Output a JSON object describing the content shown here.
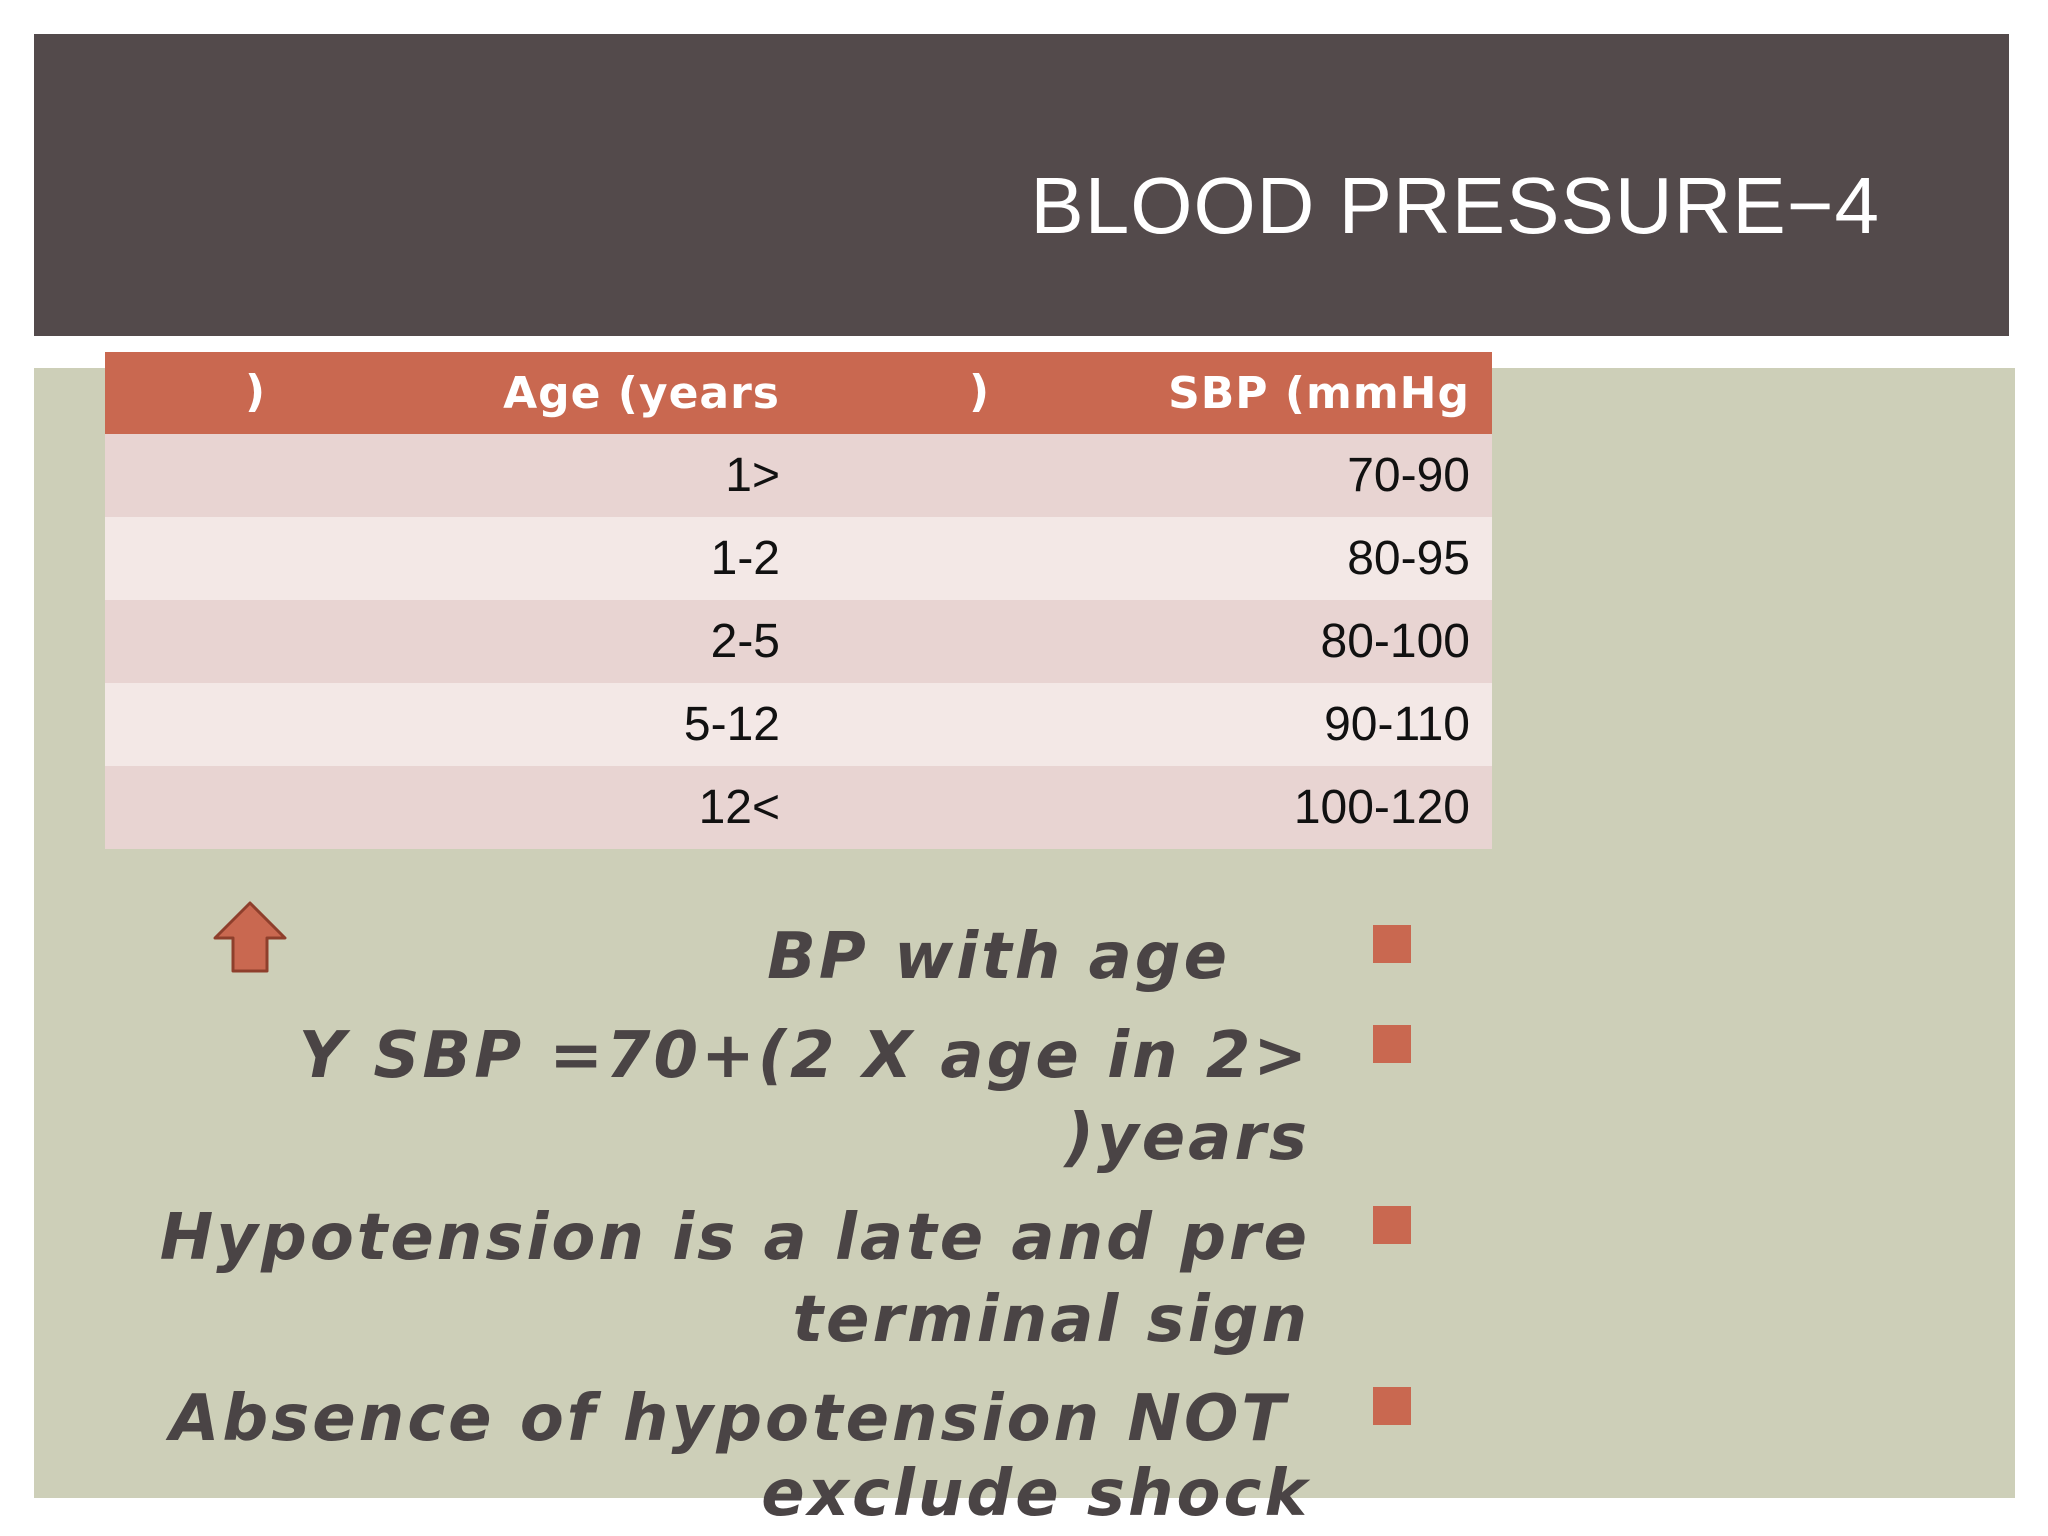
{
  "slide": {
    "title": "BLOOD PRESSURE−4"
  },
  "table": {
    "header": {
      "age_paren": ")",
      "age_label": "Age  (years",
      "sbp_paren": ")",
      "sbp_label": "SBP  (mmHg"
    },
    "rows": [
      {
        "age": "1>",
        "sbp": "70-90"
      },
      {
        "age": "1-2",
        "sbp": "80-95"
      },
      {
        "age": "2-5",
        "sbp": "80-100"
      },
      {
        "age": "5-12",
        "sbp": "90-110"
      },
      {
        "age": "12<",
        "sbp": "100-120"
      }
    ]
  },
  "bullets": [
    {
      "lines": [
        "BP with age"
      ]
    },
    {
      "lines": [
        "Y SBP =70+(2 X age in 2>",
        ")years"
      ]
    },
    {
      "lines": [
        "Hypotension is a late and pre",
        "terminal sign"
      ]
    },
    {
      "lines": [
        "Absence of hypotension NOT",
        "exclude shock"
      ]
    }
  ],
  "colors": {
    "title_bar": "#534a4b",
    "content_bg": "#cdcfb8",
    "accent": "#c96850",
    "row_odd": "#e8d4d2",
    "row_even": "#f3e8e6",
    "bullet_text": "#4a4445"
  },
  "icons": {
    "arrow": "up-arrow-icon",
    "bullet": "square-bullet-icon"
  }
}
